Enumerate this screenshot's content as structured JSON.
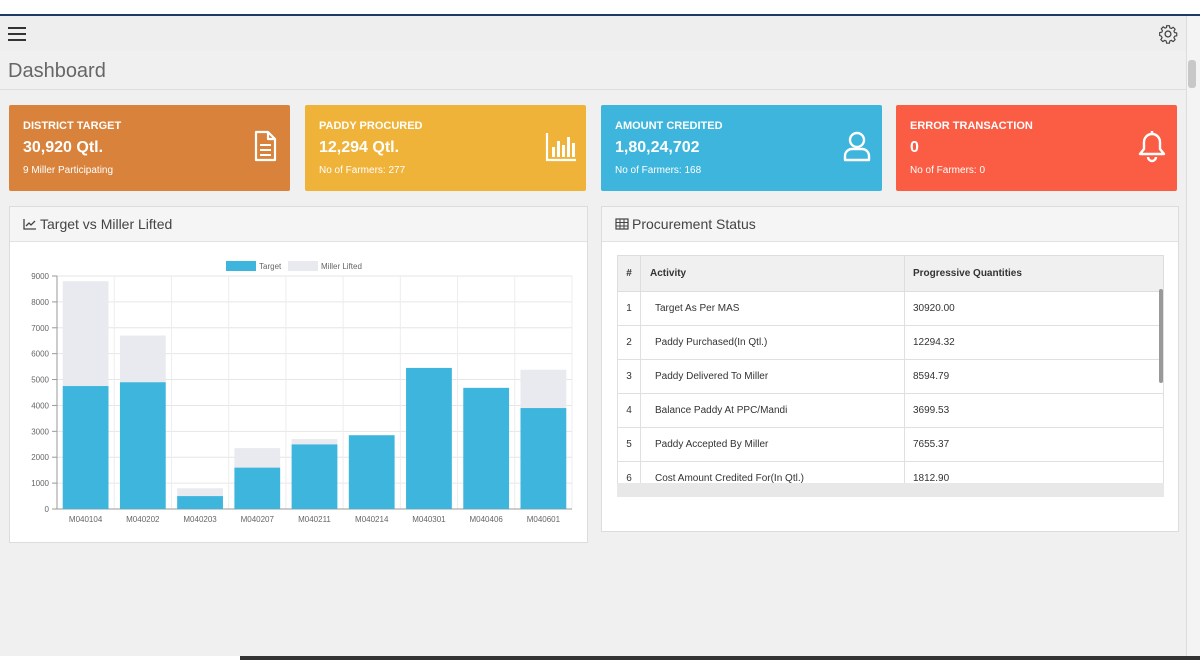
{
  "page": {
    "title": "Dashboard"
  },
  "cards": [
    {
      "label": "DISTRICT TARGET",
      "value": "30,920 Qtl.",
      "sub": "9 Miller Participating",
      "color": "#d9823b",
      "icon": "document-icon"
    },
    {
      "label": "PADDY PROCURED",
      "value": "12,294 Qtl.",
      "sub": "No of Farmers: 277",
      "color": "#f0b33a",
      "icon": "bar-chart-icon"
    },
    {
      "label": "AMOUNT CREDITED",
      "value": "1,80,24,702",
      "sub": "No of Farmers: 168",
      "color": "#3db5dc",
      "icon": "user-icon"
    },
    {
      "label": "ERROR TRANSACTION",
      "value": "0",
      "sub": "No of Farmers: 0",
      "color": "#fb5d44",
      "icon": "bell-icon"
    }
  ],
  "chart_panel": {
    "title": "Target vs Miller Lifted"
  },
  "procurement_panel": {
    "title": "Procurement Status",
    "headers": [
      "#",
      "Activity",
      "Progressive Quantities"
    ],
    "rows": [
      {
        "num": "1",
        "activity": "Target As Per MAS",
        "qty": "30920.00"
      },
      {
        "num": "2",
        "activity": "Paddy Purchased(In Qtl.)",
        "qty": "12294.32"
      },
      {
        "num": "3",
        "activity": "Paddy Delivered To Miller",
        "qty": "8594.79"
      },
      {
        "num": "4",
        "activity": "Balance Paddy At PPC/Mandi",
        "qty": "3699.53"
      },
      {
        "num": "5",
        "activity": "Paddy Accepted By Miller",
        "qty": "7655.37"
      },
      {
        "num": "6",
        "activity": "Cost Amount Credited For(In Qtl.)",
        "qty": "1812.90"
      }
    ]
  },
  "chart_data": {
    "type": "bar",
    "stacked": true,
    "categories": [
      "M040104",
      "M040202",
      "M040203",
      "M040207",
      "M040211",
      "M040214",
      "M040301",
      "M040406",
      "M040601"
    ],
    "series": [
      {
        "name": "Target",
        "color": "#3db5dc",
        "values": [
          4750,
          4900,
          500,
          1600,
          2500,
          2850,
          5450,
          4680,
          3900
        ]
      },
      {
        "name": "Miller Lifted",
        "color": "#e8eaef",
        "values": [
          4050,
          1800,
          300,
          750,
          200,
          0,
          0,
          0,
          1480
        ]
      }
    ],
    "yticks": [
      0,
      1000,
      2000,
      3000,
      4000,
      5000,
      6000,
      7000,
      8000,
      9000
    ],
    "ylim": [
      0,
      9000
    ],
    "legend": "top-center",
    "grid": true
  }
}
